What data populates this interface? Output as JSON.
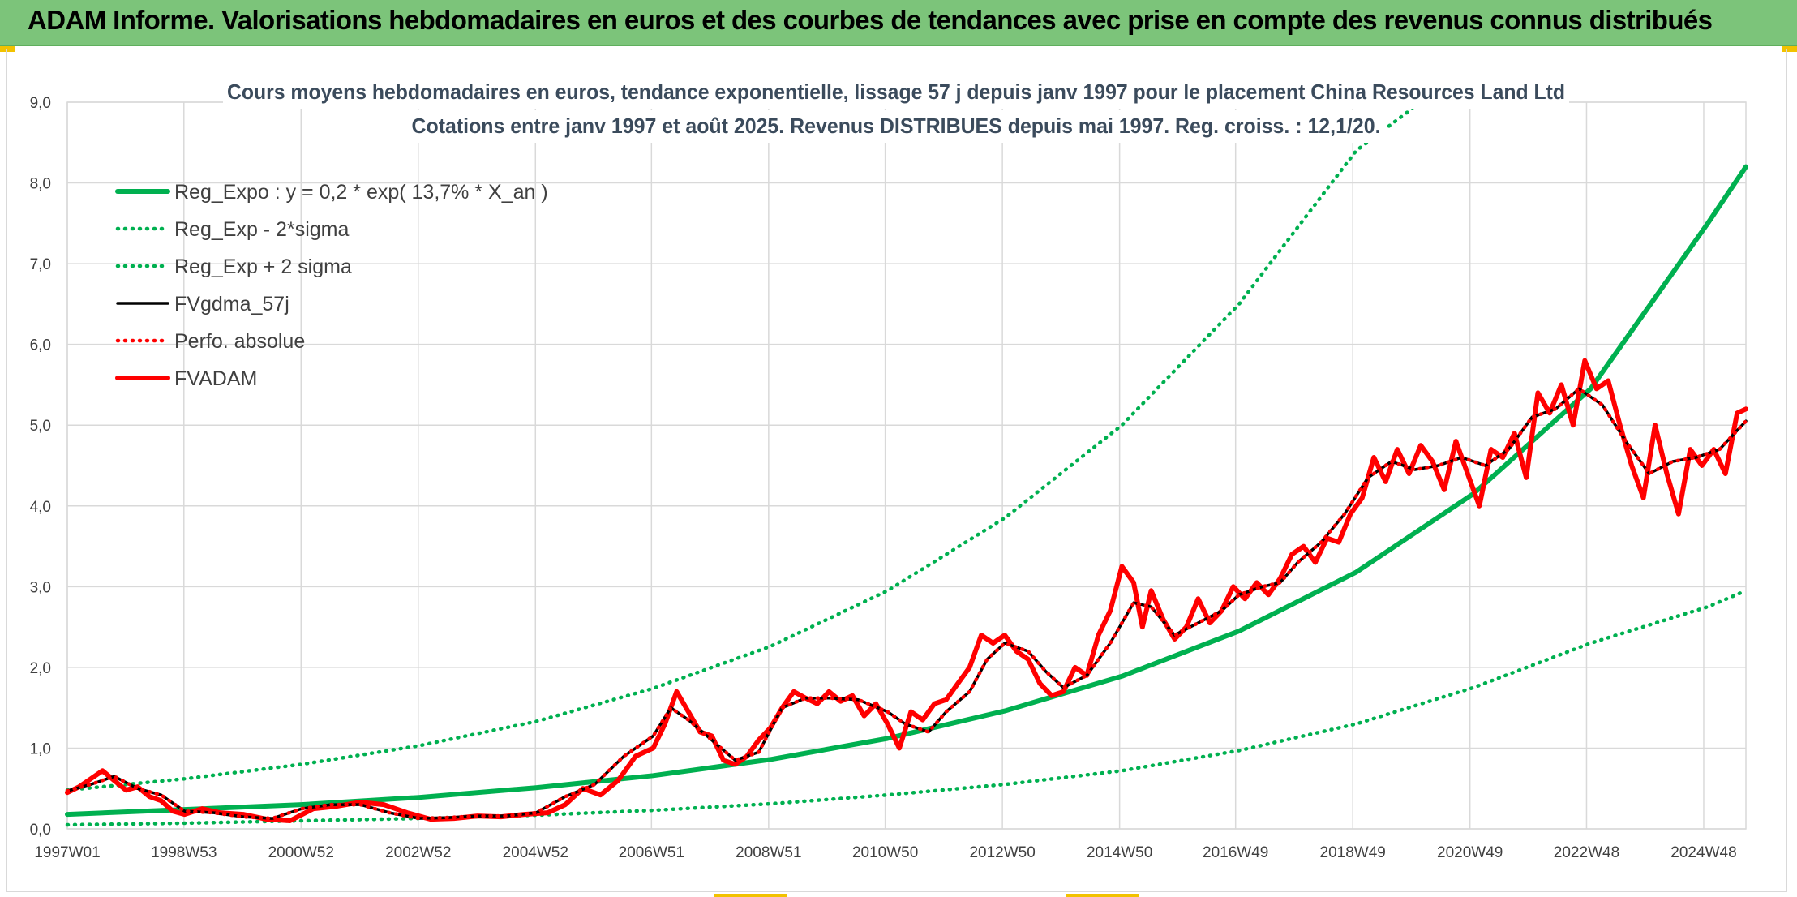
{
  "banner": {
    "title": "ADAM Informe. Valorisations hebdomadaires en euros et des courbes de tendances avec prise en compte des revenus connus distribués"
  },
  "colors": {
    "banner_bg": "#7cc47a",
    "trend_green": "#00b050",
    "price_red": "#ff0000",
    "avg_black": "#000000",
    "grid": "#d9d9d9",
    "accent_yellow": "#f2c200"
  },
  "chart_data": {
    "type": "line",
    "title": "Cours moyens hebdomadaires en euros, tendance exponentielle, lissage 57 j depuis janv 1997 pour le placement China Resources Land Ltd",
    "subtitle": "Cotations entre janv 1997 et août 2025. Revenus DISTRIBUES depuis mai 1997. Reg. croiss. : 12,1/20.",
    "xlabel": "",
    "ylabel": "",
    "ylim": [
      0,
      9
    ],
    "xlim": [
      1997.0,
      2025.65
    ],
    "grid": true,
    "legend_position": "top-left",
    "y_ticks": [
      "0,0",
      "1,0",
      "2,0",
      "3,0",
      "4,0",
      "5,0",
      "6,0",
      "7,0",
      "8,0",
      "9,0"
    ],
    "x_ticks": [
      {
        "label": "1997W01",
        "x": 1997.0
      },
      {
        "label": "1998W53",
        "x": 1998.99
      },
      {
        "label": "2000W52",
        "x": 2000.99
      },
      {
        "label": "2002W52",
        "x": 2002.99
      },
      {
        "label": "2004W52",
        "x": 2004.99
      },
      {
        "label": "2006W51",
        "x": 2006.97
      },
      {
        "label": "2008W51",
        "x": 2008.97
      },
      {
        "label": "2010W50",
        "x": 2010.96
      },
      {
        "label": "2012W50",
        "x": 2012.96
      },
      {
        "label": "2014W50",
        "x": 2014.96
      },
      {
        "label": "2016W49",
        "x": 2016.94
      },
      {
        "label": "2018W49",
        "x": 2018.94
      },
      {
        "label": "2020W49",
        "x": 2020.94
      },
      {
        "label": "2022W48",
        "x": 2022.93
      },
      {
        "label": "2024W48",
        "x": 2024.93
      }
    ],
    "series": [
      {
        "name": "Reg_Expo : y = 0,2 * exp( 13,7% *  X_an )",
        "style": "solid-thick",
        "color": "#00b050",
        "x": [
          1997,
          1999,
          2001,
          2003,
          2005,
          2007,
          2009,
          2011,
          2013,
          2015,
          2017,
          2019,
          2021,
          2023,
          2025,
          2025.65
        ],
        "y": [
          0.18,
          0.24,
          0.3,
          0.39,
          0.51,
          0.66,
          0.86,
          1.12,
          1.46,
          1.89,
          2.45,
          3.18,
          4.15,
          5.45,
          7.5,
          8.2
        ]
      },
      {
        "name": "Reg_Exp - 2*sigma",
        "style": "dotted",
        "color": "#00b050",
        "x": [
          1997,
          1999,
          2001,
          2003,
          2005,
          2007,
          2009,
          2011,
          2013,
          2015,
          2017,
          2019,
          2021,
          2023,
          2025,
          2025.65
        ],
        "y": [
          0.05,
          0.07,
          0.1,
          0.13,
          0.17,
          0.23,
          0.31,
          0.42,
          0.55,
          0.72,
          0.97,
          1.3,
          1.75,
          2.3,
          2.75,
          2.95
        ]
      },
      {
        "name": "Reg_Exp + 2 sigma",
        "style": "dotted",
        "color": "#00b050",
        "x": [
          1997,
          1999,
          2001,
          2003,
          2005,
          2007,
          2009,
          2011,
          2013,
          2015,
          2017,
          2019,
          2020.1
        ],
        "y": [
          0.48,
          0.62,
          0.8,
          1.03,
          1.33,
          1.74,
          2.26,
          2.95,
          3.85,
          5.0,
          6.5,
          8.4,
          9.0
        ]
      },
      {
        "name": "FVgdma_57j",
        "style": "solid",
        "color": "#000000",
        "x": [
          1997.0,
          1997.4,
          1997.8,
          1998.2,
          1998.6,
          1999.0,
          1999.5,
          2000.0,
          2000.5,
          2001.0,
          2001.5,
          2002.0,
          2002.5,
          2003.0,
          2003.5,
          2004.0,
          2004.5,
          2005.0,
          2005.5,
          2006.0,
          2006.5,
          2007.0,
          2007.3,
          2007.6,
          2008.0,
          2008.4,
          2008.8,
          2009.2,
          2009.6,
          2010.0,
          2010.5,
          2011.0,
          2011.3,
          2011.7,
          2012.0,
          2012.4,
          2012.7,
          2013.0,
          2013.4,
          2013.7,
          2014.0,
          2014.4,
          2014.8,
          2015.2,
          2015.5,
          2015.9,
          2016.3,
          2016.7,
          2017.0,
          2017.4,
          2017.7,
          2018.0,
          2018.4,
          2018.8,
          2019.2,
          2019.6,
          2020.0,
          2020.4,
          2020.8,
          2021.2,
          2021.6,
          2022.0,
          2022.4,
          2022.8,
          2023.2,
          2023.6,
          2024.0,
          2024.4,
          2024.8,
          2025.2,
          2025.65
        ],
        "y": [
          0.47,
          0.55,
          0.65,
          0.5,
          0.42,
          0.22,
          0.2,
          0.15,
          0.13,
          0.25,
          0.3,
          0.3,
          0.2,
          0.13,
          0.14,
          0.16,
          0.16,
          0.2,
          0.4,
          0.55,
          0.9,
          1.15,
          1.5,
          1.35,
          1.1,
          0.85,
          0.95,
          1.5,
          1.62,
          1.62,
          1.6,
          1.45,
          1.3,
          1.2,
          1.45,
          1.7,
          2.1,
          2.3,
          2.2,
          1.95,
          1.75,
          1.9,
          2.3,
          2.8,
          2.75,
          2.4,
          2.55,
          2.7,
          2.9,
          3.0,
          3.05,
          3.3,
          3.55,
          3.9,
          4.35,
          4.55,
          4.45,
          4.5,
          4.6,
          4.5,
          4.7,
          5.1,
          5.2,
          5.45,
          5.25,
          4.8,
          4.4,
          4.55,
          4.6,
          4.7,
          5.05
        ]
      },
      {
        "name": "Perfo. absolue",
        "style": "dotted",
        "color": "#ff0000",
        "x": [
          1997.0,
          1997.4,
          1997.8,
          1998.2,
          1998.6,
          1999.0,
          1999.5,
          2000.0,
          2000.5,
          2001.0,
          2001.5,
          2002.0,
          2002.5,
          2003.0,
          2003.5,
          2004.0,
          2004.5,
          2005.0,
          2005.5,
          2006.0,
          2006.5,
          2007.0,
          2007.3,
          2007.6,
          2008.0,
          2008.4,
          2008.8,
          2009.2,
          2009.6,
          2010.0,
          2010.5,
          2011.0,
          2011.3,
          2011.7,
          2012.0,
          2012.4,
          2012.7,
          2013.0,
          2013.4,
          2013.7,
          2014.0,
          2014.4,
          2014.8,
          2015.2,
          2015.5,
          2015.9,
          2016.3,
          2016.7,
          2017.0,
          2017.4,
          2017.7,
          2018.0,
          2018.4,
          2018.8,
          2019.2,
          2019.6,
          2020.0,
          2020.4,
          2020.8,
          2021.2,
          2021.6,
          2022.0,
          2022.4,
          2022.8,
          2023.2,
          2023.6,
          2024.0,
          2024.4,
          2024.8,
          2025.2,
          2025.65
        ],
        "y": [
          0.47,
          0.55,
          0.65,
          0.5,
          0.42,
          0.22,
          0.2,
          0.15,
          0.13,
          0.25,
          0.3,
          0.3,
          0.2,
          0.13,
          0.14,
          0.16,
          0.16,
          0.2,
          0.4,
          0.55,
          0.9,
          1.15,
          1.5,
          1.35,
          1.1,
          0.85,
          0.95,
          1.5,
          1.62,
          1.62,
          1.6,
          1.45,
          1.3,
          1.2,
          1.45,
          1.7,
          2.1,
          2.3,
          2.2,
          1.95,
          1.75,
          1.9,
          2.3,
          2.8,
          2.75,
          2.4,
          2.55,
          2.7,
          2.9,
          3.0,
          3.05,
          3.3,
          3.55,
          3.9,
          4.35,
          4.55,
          4.45,
          4.5,
          4.6,
          4.5,
          4.7,
          5.1,
          5.2,
          5.45,
          5.25,
          4.8,
          4.4,
          4.55,
          4.6,
          4.7,
          5.05
        ]
      },
      {
        "name": "FVADAM",
        "style": "solid-thick",
        "color": "#ff0000",
        "x": [
          1997.0,
          1997.2,
          1997.4,
          1997.6,
          1997.8,
          1998.0,
          1998.2,
          1998.4,
          1998.6,
          1998.8,
          1999.0,
          1999.3,
          1999.6,
          2000.0,
          2000.4,
          2000.8,
          2001.2,
          2001.6,
          2002.0,
          2002.4,
          2002.8,
          2003.2,
          2003.6,
          2004.0,
          2004.4,
          2004.8,
          2005.2,
          2005.5,
          2005.8,
          2006.1,
          2006.4,
          2006.7,
          2007.0,
          2007.2,
          2007.4,
          2007.6,
          2007.8,
          2008.0,
          2008.2,
          2008.4,
          2008.6,
          2008.8,
          2009.0,
          2009.2,
          2009.4,
          2009.6,
          2009.8,
          2010.0,
          2010.2,
          2010.4,
          2010.6,
          2010.8,
          2011.0,
          2011.2,
          2011.4,
          2011.6,
          2011.8,
          2012.0,
          2012.2,
          2012.4,
          2012.6,
          2012.8,
          2013.0,
          2013.2,
          2013.4,
          2013.6,
          2013.8,
          2014.0,
          2014.2,
          2014.4,
          2014.6,
          2014.8,
          2015.0,
          2015.2,
          2015.35,
          2015.5,
          2015.7,
          2015.9,
          2016.1,
          2016.3,
          2016.5,
          2016.7,
          2016.9,
          2017.1,
          2017.3,
          2017.5,
          2017.7,
          2017.9,
          2018.1,
          2018.3,
          2018.5,
          2018.7,
          2018.9,
          2019.1,
          2019.3,
          2019.5,
          2019.7,
          2019.9,
          2020.1,
          2020.3,
          2020.5,
          2020.7,
          2020.9,
          2021.1,
          2021.3,
          2021.5,
          2021.7,
          2021.9,
          2022.1,
          2022.3,
          2022.5,
          2022.7,
          2022.9,
          2023.1,
          2023.3,
          2023.5,
          2023.7,
          2023.9,
          2024.1,
          2024.3,
          2024.5,
          2024.7,
          2024.9,
          2025.1,
          2025.3,
          2025.5,
          2025.65
        ],
        "y": [
          0.45,
          0.52,
          0.62,
          0.72,
          0.6,
          0.48,
          0.52,
          0.4,
          0.35,
          0.22,
          0.18,
          0.25,
          0.2,
          0.18,
          0.12,
          0.1,
          0.25,
          0.28,
          0.33,
          0.3,
          0.2,
          0.12,
          0.13,
          0.16,
          0.15,
          0.18,
          0.2,
          0.3,
          0.5,
          0.42,
          0.6,
          0.9,
          1.0,
          1.3,
          1.7,
          1.45,
          1.2,
          1.15,
          0.85,
          0.8,
          0.9,
          1.1,
          1.25,
          1.5,
          1.7,
          1.62,
          1.55,
          1.7,
          1.58,
          1.65,
          1.4,
          1.55,
          1.3,
          1.0,
          1.45,
          1.35,
          1.55,
          1.6,
          1.8,
          2.0,
          2.4,
          2.3,
          2.4,
          2.2,
          2.1,
          1.8,
          1.65,
          1.7,
          2.0,
          1.9,
          2.4,
          2.7,
          3.25,
          3.05,
          2.5,
          2.95,
          2.6,
          2.35,
          2.5,
          2.85,
          2.55,
          2.7,
          3.0,
          2.85,
          3.05,
          2.9,
          3.1,
          3.4,
          3.5,
          3.3,
          3.6,
          3.55,
          3.9,
          4.1,
          4.6,
          4.3,
          4.7,
          4.4,
          4.75,
          4.55,
          4.2,
          4.8,
          4.4,
          4.0,
          4.7,
          4.6,
          4.9,
          4.35,
          5.4,
          5.15,
          5.5,
          5.0,
          5.8,
          5.45,
          5.55,
          5.0,
          4.5,
          4.1,
          5.0,
          4.4,
          3.9,
          4.7,
          4.5,
          4.7,
          4.4,
          5.15,
          5.2
        ]
      }
    ]
  }
}
